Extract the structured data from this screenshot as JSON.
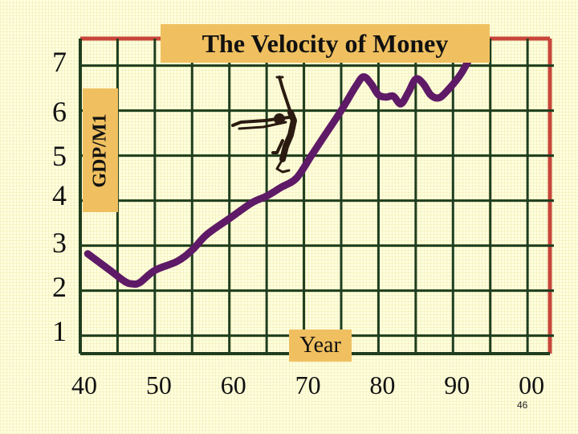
{
  "chart_data": {
    "type": "line",
    "title": "The Velocity of Money",
    "ylabel": "GDP/M1",
    "xlabel": "Year",
    "y_ticks": [
      "1",
      "2",
      "3",
      "4",
      "5",
      "6",
      "7"
    ],
    "x_ticks": [
      "40",
      "50",
      "60",
      "70",
      "80",
      "90",
      "00"
    ],
    "ylim": [
      0.6,
      7.6
    ],
    "xlim": [
      1940,
      2003
    ],
    "grid": true,
    "series": [
      {
        "color": "#5E1A66",
        "points": [
          [
            1941,
            2.82
          ],
          [
            1944,
            2.45
          ],
          [
            1946,
            2.2
          ],
          [
            1947,
            2.15
          ],
          [
            1948,
            2.18
          ],
          [
            1950,
            2.45
          ],
          [
            1953,
            2.65
          ],
          [
            1955,
            2.9
          ],
          [
            1957,
            3.25
          ],
          [
            1960,
            3.6
          ],
          [
            1963,
            3.95
          ],
          [
            1965,
            4.1
          ],
          [
            1967,
            4.3
          ],
          [
            1969,
            4.5
          ],
          [
            1971,
            5.0
          ],
          [
            1973,
            5.5
          ],
          [
            1975,
            6.0
          ],
          [
            1977,
            6.55
          ],
          [
            1978,
            6.75
          ],
          [
            1979,
            6.6
          ],
          [
            1980,
            6.35
          ],
          [
            1981,
            6.3
          ],
          [
            1982,
            6.32
          ],
          [
            1983,
            6.15
          ],
          [
            1984,
            6.4
          ],
          [
            1985,
            6.7
          ],
          [
            1986,
            6.6
          ],
          [
            1987,
            6.35
          ],
          [
            1988,
            6.28
          ],
          [
            1989,
            6.4
          ],
          [
            1991,
            6.8
          ],
          [
            1993,
            7.4
          ],
          [
            1994,
            7.7
          ]
        ]
      }
    ],
    "colors": {
      "background": "#FFFFE0",
      "grid": "#1E3D1E",
      "line": "#5E1A66",
      "label_box": "#F0C060",
      "frame_accent": "#C8463A"
    }
  },
  "slide_number": "46",
  "decoration": {
    "figure": "diver-icon"
  }
}
